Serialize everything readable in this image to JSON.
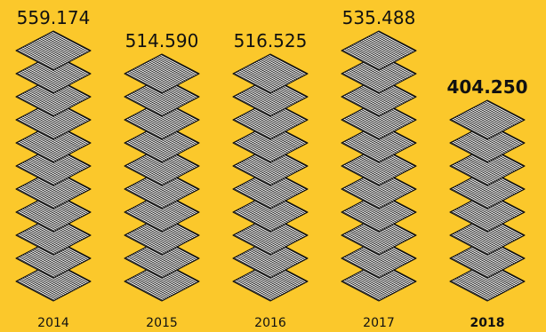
{
  "chart_data": {
    "type": "bar",
    "categories": [
      "2014",
      "2015",
      "2016",
      "2017",
      "2018"
    ],
    "values": [
      559174,
      514590,
      516525,
      535488,
      404250
    ],
    "value_labels": [
      "559.174",
      "514.590",
      "516.525",
      "535.488",
      "404.250"
    ],
    "highlight_category": "2018",
    "title": "",
    "xlabel": "",
    "ylabel": "",
    "grid": false,
    "legend": "none",
    "colors": {
      "background": "#FBC82B",
      "mark_fill": "#FFFFFF",
      "mark_stroke": "#111111",
      "text": "#111111"
    }
  }
}
